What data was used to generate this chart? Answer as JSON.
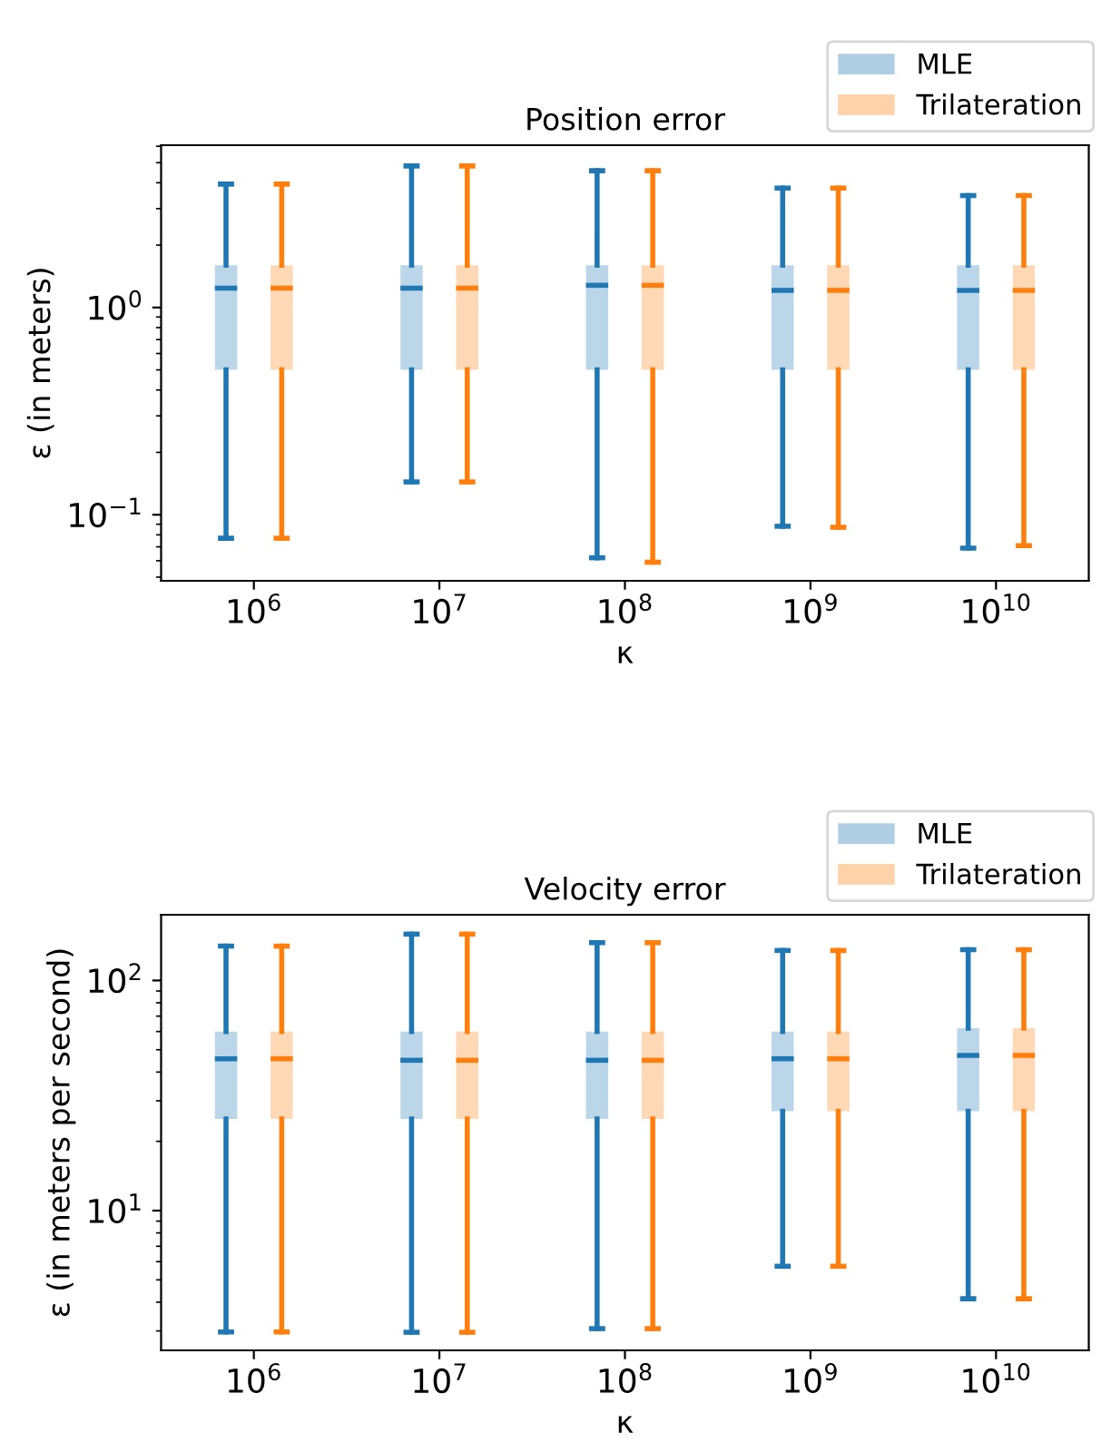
{
  "chart_data": [
    {
      "type": "box",
      "title": "Position error",
      "xlabel": "κ",
      "ylabel": "ε (in meters)",
      "log": "y",
      "categories": [
        "10$^{6}$",
        "10$^{7}$",
        "10$^{8}$",
        "10$^{9}$",
        "10$^{10}$"
      ],
      "ylim": [
        0.048,
        6.07
      ],
      "yticks": [
        {
          "value": 0.1,
          "label": "10$^{−1}$"
        },
        {
          "value": 1,
          "label": "10$^{0}$"
        }
      ],
      "legend": "top right",
      "grid": false,
      "series": [
        {
          "name": "MLE",
          "color": "#1f77b4",
          "boxes": [
            {
              "low": 0.077,
              "q1": 0.5,
              "median": 1.24,
              "q3": 1.6,
              "high": 3.94
            },
            {
              "low": 0.144,
              "q1": 0.5,
              "median": 1.24,
              "q3": 1.6,
              "high": 4.82
            },
            {
              "low": 0.062,
              "q1": 0.5,
              "median": 1.28,
              "q3": 1.6,
              "high": 4.57
            },
            {
              "low": 0.088,
              "q1": 0.5,
              "median": 1.21,
              "q3": 1.6,
              "high": 3.77
            },
            {
              "low": 0.069,
              "q1": 0.5,
              "median": 1.21,
              "q3": 1.6,
              "high": 3.47
            }
          ]
        },
        {
          "name": "Trilateration",
          "color": "#ff7f0e",
          "boxes": [
            {
              "low": 0.077,
              "q1": 0.5,
              "median": 1.24,
              "q3": 1.6,
              "high": 3.94
            },
            {
              "low": 0.144,
              "q1": 0.5,
              "median": 1.24,
              "q3": 1.6,
              "high": 4.82
            },
            {
              "low": 0.059,
              "q1": 0.5,
              "median": 1.28,
              "q3": 1.6,
              "high": 4.57
            },
            {
              "low": 0.087,
              "q1": 0.5,
              "median": 1.21,
              "q3": 1.6,
              "high": 3.77
            },
            {
              "low": 0.071,
              "q1": 0.5,
              "median": 1.21,
              "q3": 1.6,
              "high": 3.47
            }
          ]
        }
      ]
    },
    {
      "type": "box",
      "title": "Velocity error",
      "xlabel": "κ",
      "ylabel": "ε (in meters per second)",
      "log": "y",
      "categories": [
        "10$^{6}$",
        "10$^{7}$",
        "10$^{8}$",
        "10$^{9}$",
        "10$^{10}$"
      ],
      "ylim": [
        2.47,
        193
      ],
      "yticks": [
        {
          "value": 10,
          "label": "10$^{1}$"
        },
        {
          "value": 100,
          "label": "10$^{2}$"
        }
      ],
      "legend": "top right",
      "grid": false,
      "series": [
        {
          "name": "MLE",
          "color": "#1f77b4",
          "boxes": [
            {
              "low": 2.97,
              "q1": 25,
              "median": 45.7,
              "q3": 60,
              "high": 141
            },
            {
              "low": 2.96,
              "q1": 25,
              "median": 45,
              "q3": 60,
              "high": 159
            },
            {
              "low": 3.07,
              "q1": 25,
              "median": 45,
              "q3": 60,
              "high": 146
            },
            {
              "low": 5.73,
              "q1": 27,
              "median": 45.7,
              "q3": 60,
              "high": 135
            },
            {
              "low": 4.14,
              "q1": 27,
              "median": 47.2,
              "q3": 62,
              "high": 136
            }
          ]
        },
        {
          "name": "Trilateration",
          "color": "#ff7f0e",
          "boxes": [
            {
              "low": 2.97,
              "q1": 25,
              "median": 45.7,
              "q3": 60,
              "high": 141
            },
            {
              "low": 2.96,
              "q1": 25,
              "median": 45,
              "q3": 60,
              "high": 159
            },
            {
              "low": 3.07,
              "q1": 25,
              "median": 45,
              "q3": 60,
              "high": 146
            },
            {
              "low": 5.73,
              "q1": 27,
              "median": 45.7,
              "q3": 60,
              "high": 135
            },
            {
              "low": 4.14,
              "q1": 27,
              "median": 47.2,
              "q3": 62,
              "high": 136
            }
          ]
        }
      ]
    }
  ]
}
